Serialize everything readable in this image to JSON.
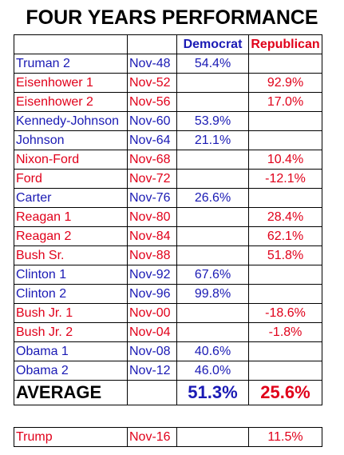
{
  "title": "FOUR YEARS PERFORMANCE",
  "colors": {
    "democrat": "#1a1ab4",
    "republican": "#e0001a"
  },
  "headers": {
    "democrat": "Democrat",
    "republican": "Republican"
  },
  "rows": [
    {
      "name": "Truman 2",
      "date": "Nov-48",
      "party": "D",
      "dem": "54.4%",
      "rep": ""
    },
    {
      "name": "Eisenhower 1",
      "date": "Nov-52",
      "party": "R",
      "dem": "",
      "rep": "92.9%"
    },
    {
      "name": "Eisenhower 2",
      "date": "Nov-56",
      "party": "R",
      "dem": "",
      "rep": "17.0%"
    },
    {
      "name": "Kennedy-Johnson",
      "date": "Nov-60",
      "party": "D",
      "dem": "53.9%",
      "rep": ""
    },
    {
      "name": "Johnson",
      "date": "Nov-64",
      "party": "D",
      "dem": "21.1%",
      "rep": ""
    },
    {
      "name": "Nixon-Ford",
      "date": "Nov-68",
      "party": "R",
      "dem": "",
      "rep": "10.4%"
    },
    {
      "name": "Ford",
      "date": "Nov-72",
      "party": "R",
      "dem": "",
      "rep": "-12.1%"
    },
    {
      "name": "Carter",
      "date": "Nov-76",
      "party": "D",
      "dem": "26.6%",
      "rep": ""
    },
    {
      "name": "Reagan 1",
      "date": "Nov-80",
      "party": "R",
      "dem": "",
      "rep": "28.4%"
    },
    {
      "name": "Reagan 2",
      "date": "Nov-84",
      "party": "R",
      "dem": "",
      "rep": "62.1%"
    },
    {
      "name": "Bush Sr.",
      "date": "Nov-88",
      "party": "R",
      "dem": "",
      "rep": "51.8%"
    },
    {
      "name": "Clinton 1",
      "date": "Nov-92",
      "party": "D",
      "dem": "67.6%",
      "rep": ""
    },
    {
      "name": "Clinton 2",
      "date": "Nov-96",
      "party": "D",
      "dem": "99.8%",
      "rep": ""
    },
    {
      "name": "Bush Jr. 1",
      "date": "Nov-00",
      "party": "R",
      "dem": "",
      "rep": "-18.6%"
    },
    {
      "name": "Bush Jr. 2",
      "date": "Nov-04",
      "party": "R",
      "dem": "",
      "rep": "-1.8%"
    },
    {
      "name": "Obama 1",
      "date": "Nov-08",
      "party": "D",
      "dem": "40.6%",
      "rep": ""
    },
    {
      "name": "Obama 2",
      "date": "Nov-12",
      "party": "D",
      "dem": "46.0%",
      "rep": ""
    }
  ],
  "average": {
    "label": "AVERAGE",
    "dem": "51.3%",
    "rep": "25.6%"
  },
  "extra_row": {
    "name": "Trump",
    "date": "Nov-16",
    "party": "R",
    "dem": "",
    "rep": "11.5%"
  }
}
